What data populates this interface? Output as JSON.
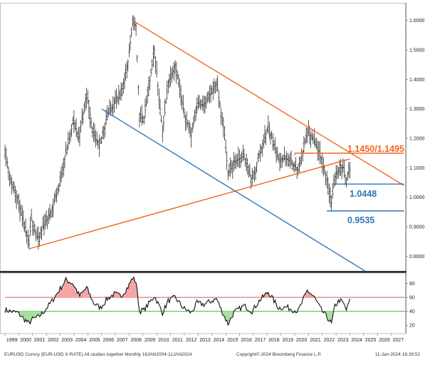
{
  "chart_data": [
    {
      "type": "bar",
      "subtype": "ohlc",
      "instrument": "EURUSD Curncy (EUR-USD X-RATE)",
      "frequency": "Monthly",
      "x_range": [
        "1999-01",
        "2027-12"
      ],
      "x_tick_labels": [
        "1999",
        "2000",
        "2001",
        "2002",
        "2003",
        "2004",
        "2005",
        "2006",
        "2007",
        "2008",
        "2009",
        "2010",
        "2011",
        "2012",
        "2013",
        "2014",
        "2015",
        "2016",
        "2017",
        "2018",
        "2019",
        "2020",
        "2021",
        "2022",
        "2023",
        "2024",
        "2025",
        "2026",
        "2027"
      ],
      "ylim": [
        0.75,
        1.65
      ],
      "y_ticks": [
        0.8,
        0.9,
        1.0,
        1.1,
        1.2,
        1.3,
        1.4,
        1.5,
        1.6
      ],
      "y_tick_labels": [
        "0.8000",
        "0.9000",
        "1.0000",
        "1.1000",
        "1.2000",
        "1.3000",
        "1.4000",
        "1.5000",
        "1.6000"
      ],
      "grid": false,
      "y_axis_side": "right",
      "price_path": [
        {
          "x": "1999-01",
          "y": 1.16
        },
        {
          "x": "1999-06",
          "y": 1.05
        },
        {
          "x": "1999-12",
          "y": 1.0
        },
        {
          "x": "2000-05",
          "y": 0.91
        },
        {
          "x": "2000-10",
          "y": 0.84
        },
        {
          "x": "2000-12",
          "y": 0.93
        },
        {
          "x": "2001-06",
          "y": 0.85
        },
        {
          "x": "2001-10",
          "y": 0.9
        },
        {
          "x": "2002-06",
          "y": 0.96
        },
        {
          "x": "2002-12",
          "y": 1.04
        },
        {
          "x": "2003-06",
          "y": 1.15
        },
        {
          "x": "2003-12",
          "y": 1.25
        },
        {
          "x": "2004-02",
          "y": 1.25
        },
        {
          "x": "2004-05",
          "y": 1.2
        },
        {
          "x": "2004-12",
          "y": 1.35
        },
        {
          "x": "2005-06",
          "y": 1.21
        },
        {
          "x": "2005-11",
          "y": 1.17
        },
        {
          "x": "2006-06",
          "y": 1.28
        },
        {
          "x": "2006-12",
          "y": 1.32
        },
        {
          "x": "2007-06",
          "y": 1.35
        },
        {
          "x": "2007-12",
          "y": 1.46
        },
        {
          "x": "2008-04",
          "y": 1.59
        },
        {
          "x": "2008-07",
          "y": 1.58
        },
        {
          "x": "2008-10",
          "y": 1.27
        },
        {
          "x": "2009-02",
          "y": 1.27
        },
        {
          "x": "2009-11",
          "y": 1.5
        },
        {
          "x": "2010-06",
          "y": 1.22
        },
        {
          "x": "2010-11",
          "y": 1.39
        },
        {
          "x": "2011-05",
          "y": 1.45
        },
        {
          "x": "2011-12",
          "y": 1.3
        },
        {
          "x": "2012-07",
          "y": 1.21
        },
        {
          "x": "2012-12",
          "y": 1.32
        },
        {
          "x": "2013-06",
          "y": 1.31
        },
        {
          "x": "2014-05",
          "y": 1.39
        },
        {
          "x": "2014-12",
          "y": 1.21
        },
        {
          "x": "2015-03",
          "y": 1.08
        },
        {
          "x": "2015-08",
          "y": 1.12
        },
        {
          "x": "2016-05",
          "y": 1.14
        },
        {
          "x": "2016-12",
          "y": 1.05
        },
        {
          "x": "2017-06",
          "y": 1.14
        },
        {
          "x": "2018-02",
          "y": 1.24
        },
        {
          "x": "2018-11",
          "y": 1.13
        },
        {
          "x": "2019-06",
          "y": 1.13
        },
        {
          "x": "2019-12",
          "y": 1.11
        },
        {
          "x": "2020-04",
          "y": 1.09
        },
        {
          "x": "2020-12",
          "y": 1.22
        },
        {
          "x": "2021-06",
          "y": 1.19
        },
        {
          "x": "2021-12",
          "y": 1.13
        },
        {
          "x": "2022-05",
          "y": 1.06
        },
        {
          "x": "2022-09",
          "y": 0.98
        },
        {
          "x": "2022-12",
          "y": 1.07
        },
        {
          "x": "2023-04",
          "y": 1.1
        },
        {
          "x": "2023-07",
          "y": 1.1
        },
        {
          "x": "2023-10",
          "y": 1.06
        },
        {
          "x": "2023-12",
          "y": 1.1
        },
        {
          "x": "2024-01",
          "y": 1.095
        }
      ],
      "trendlines": [
        {
          "color": "#f26522",
          "from": {
            "x": "2008-04",
            "y": 1.6
          },
          "to": {
            "x": "2027-12",
            "y": 1.04
          }
        },
        {
          "color": "#f26522",
          "from": {
            "x": "2000-10",
            "y": 0.825
          },
          "to": {
            "x": "2024-01",
            "y": 1.13
          }
        },
        {
          "color": "#2e75b6",
          "from": {
            "x": "2006-01",
            "y": 1.3
          },
          "to": {
            "x": "2025-02",
            "y": 0.75
          }
        }
      ],
      "levels": [
        {
          "label": "1.1450/1.1495",
          "value": 1.1495,
          "color": "#f26522",
          "from": "2020-01",
          "to": "2027-12"
        },
        {
          "label": "1.0448",
          "value": 1.0448,
          "color": "#2e75b6",
          "from": "2022-09",
          "to": "2027-12"
        },
        {
          "label": "0.9535",
          "value": 0.9535,
          "color": "#2e75b6",
          "from": "2022-05",
          "to": "2027-12"
        }
      ]
    },
    {
      "type": "line",
      "indicator": "RSI",
      "ylim": [
        10,
        95
      ],
      "y_ticks": [
        20,
        40,
        60,
        80
      ],
      "y_tick_labels": [
        "20",
        "40",
        "60",
        "80"
      ],
      "reference_lines": [
        {
          "value": 60,
          "color": "#e05050"
        },
        {
          "value": 40,
          "color": "#3cb44b"
        }
      ],
      "fill_above": {
        "threshold": 60,
        "color": "#f4a6a6"
      },
      "fill_below": {
        "threshold": 40,
        "color": "#a8e0a0"
      },
      "series": [
        {
          "values": [
            {
              "x": "1999-01",
              "y": 42
            },
            {
              "x": "1999-06",
              "y": 40
            },
            {
              "x": "1999-12",
              "y": 38
            },
            {
              "x": "2000-05",
              "y": 30
            },
            {
              "x": "2000-10",
              "y": 22
            },
            {
              "x": "2000-12",
              "y": 28
            },
            {
              "x": "2001-06",
              "y": 32
            },
            {
              "x": "2001-10",
              "y": 38
            },
            {
              "x": "2002-06",
              "y": 55
            },
            {
              "x": "2002-12",
              "y": 70
            },
            {
              "x": "2003-06",
              "y": 85
            },
            {
              "x": "2003-12",
              "y": 80
            },
            {
              "x": "2004-06",
              "y": 62
            },
            {
              "x": "2004-12",
              "y": 74
            },
            {
              "x": "2005-06",
              "y": 52
            },
            {
              "x": "2005-12",
              "y": 45
            },
            {
              "x": "2006-06",
              "y": 58
            },
            {
              "x": "2006-12",
              "y": 65
            },
            {
              "x": "2007-06",
              "y": 62
            },
            {
              "x": "2007-12",
              "y": 75
            },
            {
              "x": "2008-04",
              "y": 88
            },
            {
              "x": "2008-07",
              "y": 82
            },
            {
              "x": "2008-10",
              "y": 40
            },
            {
              "x": "2009-02",
              "y": 42
            },
            {
              "x": "2009-11",
              "y": 62
            },
            {
              "x": "2010-06",
              "y": 38
            },
            {
              "x": "2010-11",
              "y": 55
            },
            {
              "x": "2011-05",
              "y": 60
            },
            {
              "x": "2011-12",
              "y": 45
            },
            {
              "x": "2012-07",
              "y": 38
            },
            {
              "x": "2012-12",
              "y": 52
            },
            {
              "x": "2013-06",
              "y": 50
            },
            {
              "x": "2014-05",
              "y": 58
            },
            {
              "x": "2014-12",
              "y": 32
            },
            {
              "x": "2015-03",
              "y": 22
            },
            {
              "x": "2015-08",
              "y": 38
            },
            {
              "x": "2016-05",
              "y": 48
            },
            {
              "x": "2016-12",
              "y": 40
            },
            {
              "x": "2017-06",
              "y": 55
            },
            {
              "x": "2018-02",
              "y": 68
            },
            {
              "x": "2018-11",
              "y": 45
            },
            {
              "x": "2019-06",
              "y": 46
            },
            {
              "x": "2019-12",
              "y": 42
            },
            {
              "x": "2020-04",
              "y": 40
            },
            {
              "x": "2020-12",
              "y": 70
            },
            {
              "x": "2021-06",
              "y": 60
            },
            {
              "x": "2021-12",
              "y": 42
            },
            {
              "x": "2022-05",
              "y": 32
            },
            {
              "x": "2022-09",
              "y": 22
            },
            {
              "x": "2022-12",
              "y": 48
            },
            {
              "x": "2023-04",
              "y": 56
            },
            {
              "x": "2023-07",
              "y": 52
            },
            {
              "x": "2023-10",
              "y": 42
            },
            {
              "x": "2023-12",
              "y": 52
            },
            {
              "x": "2024-01",
              "y": 55
            }
          ]
        }
      ]
    }
  ],
  "footer": {
    "left": "EURUSD Curncy (EUR-USD X-RATE)  All studies together  Monthly 16JAN2004-11JAN2024",
    "center": "Copyright© 2024 Bloomberg Finance L.P.",
    "right": "11-Jan-2024 16:39:52"
  }
}
